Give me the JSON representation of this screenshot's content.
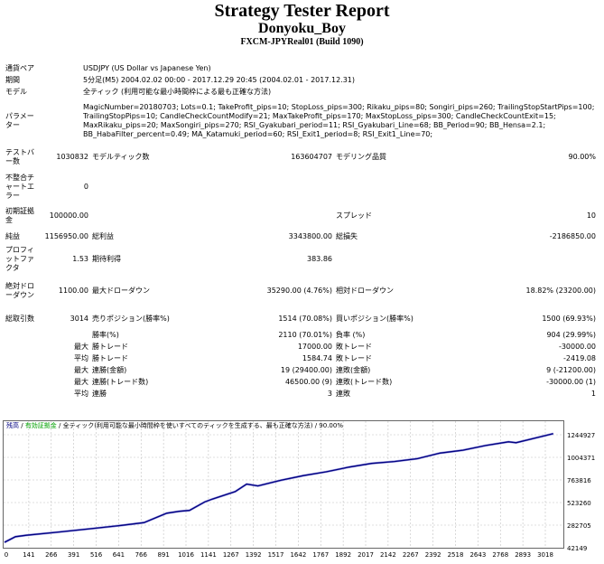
{
  "header": {
    "title": "Strategy Tester Report",
    "ea_name": "Donyoku_Boy",
    "server": "FXCM-JPYReal01 (Build 1090)"
  },
  "info": {
    "symbol_label": "通貨ペア",
    "symbol": "USDJPY (US Dollar vs Japanese Yen)",
    "period_label": "期間",
    "period": "5分足(M5) 2004.02.02 00:00 - 2017.12.29 20:45 (2004.02.01 - 2017.12.31)",
    "model_label": "モデル",
    "model": "全ティック (利用可能な最小時間枠による最も正確な方法)",
    "params_label": "パラメーター",
    "params": [
      "MagicNumber=20180703; Lots=0.1; TakeProfit_pips=10; StopLoss_pips=300; Rikaku_pips=80; Songiri_pips=260; TrailingStopStartPips=100;",
      "TrailingStopPips=10; CandleCheckCountModify=21; MaxTakeProfit_pips=170; MaxStopLoss_pips=300; CandleCheckCountExit=15;",
      "MaxRikaku_pips=20; MaxSongiri_pips=270; RSI_Gyakubari_period=11; RSI_Gyakubari_Line=68; BB_Period=90; BB_Hensa=2.1;",
      "BB_HabaFilter_percent=0.49; MA_Katamuki_period=60; RSI_Exit1_period=8; RSI_Exit1_Line=70;"
    ]
  },
  "stats": {
    "bars_label": "テストバー数",
    "bars": "1030832",
    "ticks_label": "モデルティック数",
    "ticks": "163604707",
    "quality_label": "モデリング品質",
    "quality": "90.00%",
    "mismatch_label": "不整合チャートエラー",
    "mismatch": "0",
    "deposit_label": "初期証拠金",
    "deposit": "100000.00",
    "spread_label": "スプレッド",
    "spread": "10",
    "net_label": "純益",
    "net": "1156950.00",
    "gross_profit_label": "総利益",
    "gross_profit": "3343800.00",
    "gross_loss_label": "総損失",
    "gross_loss": "-2186850.00",
    "pf_label": "プロフィットファクタ",
    "pf": "1.53",
    "expected_label": "期待利得",
    "expected": "383.86",
    "abs_dd_label": "絶対ドローダウン",
    "abs_dd": "1100.00",
    "max_dd_label": "最大ドローダウン",
    "max_dd": "35290.00 (4.76%)",
    "rel_dd_label": "相対ドローダウン",
    "rel_dd": "18.82% (23200.00)",
    "trades_label": "総取引数",
    "trades": "3014",
    "short_label": "売りポジション(勝率%)",
    "short": "1514 (70.08%)",
    "long_label": "買いポジション(勝率%)",
    "long": "1500 (69.93%)",
    "win_label": "勝率(%)",
    "win": "2110 (70.01%)",
    "loss_label": "負率 (%)",
    "loss": "904 (29.99%)",
    "max": "最大",
    "avg": "平均",
    "largest_win_label": "勝トレード",
    "largest_win": "17000.00",
    "largest_loss_label": "敗トレード",
    "largest_loss": "-30000.00",
    "avg_win_label": "勝トレード",
    "avg_win": "1584.74",
    "avg_loss_label": "敗トレード",
    "avg_loss": "-2419.08",
    "cons_win_label": "連勝(金額)",
    "cons_win": "19 (29400.00)",
    "cons_loss_label": "連敗(金額)",
    "cons_loss": "9 (-21200.00)",
    "cons_profit_label": "連勝(トレード数)",
    "cons_profit": "46500.00 (9)",
    "cons_lossamt_label": "連敗(トレード数)",
    "cons_lossamt": "-30000.00 (1)",
    "avg_cons_win_label": "連勝",
    "avg_cons_win": "3",
    "avg_cons_loss_label": "連敗",
    "avg_cons_loss": "1"
  },
  "chart_data": {
    "type": "line",
    "legend": {
      "balance": "残高",
      "sep1": " / ",
      "equity": "有効証拠金",
      "rest": " / 全ティック(利用可能な最小時間枠を使いすべてのティックを生成する、最も正確な方法) / 90.00%"
    },
    "colors": {
      "balance": "#000080",
      "equity": "#00a000",
      "grid": "#c0c0c0"
    },
    "x_ticks": [
      "0",
      "141",
      "266",
      "391",
      "516",
      "641",
      "766",
      "891",
      "1016",
      "1141",
      "1267",
      "1392",
      "1517",
      "1642",
      "1767",
      "1892",
      "2017",
      "2142",
      "2267",
      "2392",
      "2518",
      "2643",
      "2768",
      "2893",
      "3018"
    ],
    "y_ticks": [
      "1244927",
      "1004371",
      "763816",
      "523260",
      "282705",
      "42149"
    ],
    "ylim": [
      42149,
      1244927
    ],
    "xlim": [
      0,
      3040
    ],
    "series": [
      {
        "x": [
          0,
          60,
          120,
          300,
          500,
          641,
          766,
          891,
          960,
          1016,
          1100,
          1141,
          1267,
          1330,
          1392,
          1517,
          1642,
          1767,
          1892,
          2017,
          2142,
          2267,
          2392,
          2518,
          2643,
          2768,
          2810,
          2893,
          3014
        ],
        "y": [
          100000,
          160000,
          175000,
          210000,
          250000,
          280000,
          310000,
          410000,
          430000,
          440000,
          530000,
          560000,
          640000,
          720000,
          700000,
          760000,
          810000,
          850000,
          900000,
          940000,
          960000,
          990000,
          1050000,
          1080000,
          1130000,
          1170000,
          1160000,
          1200000,
          1256950
        ]
      }
    ]
  }
}
